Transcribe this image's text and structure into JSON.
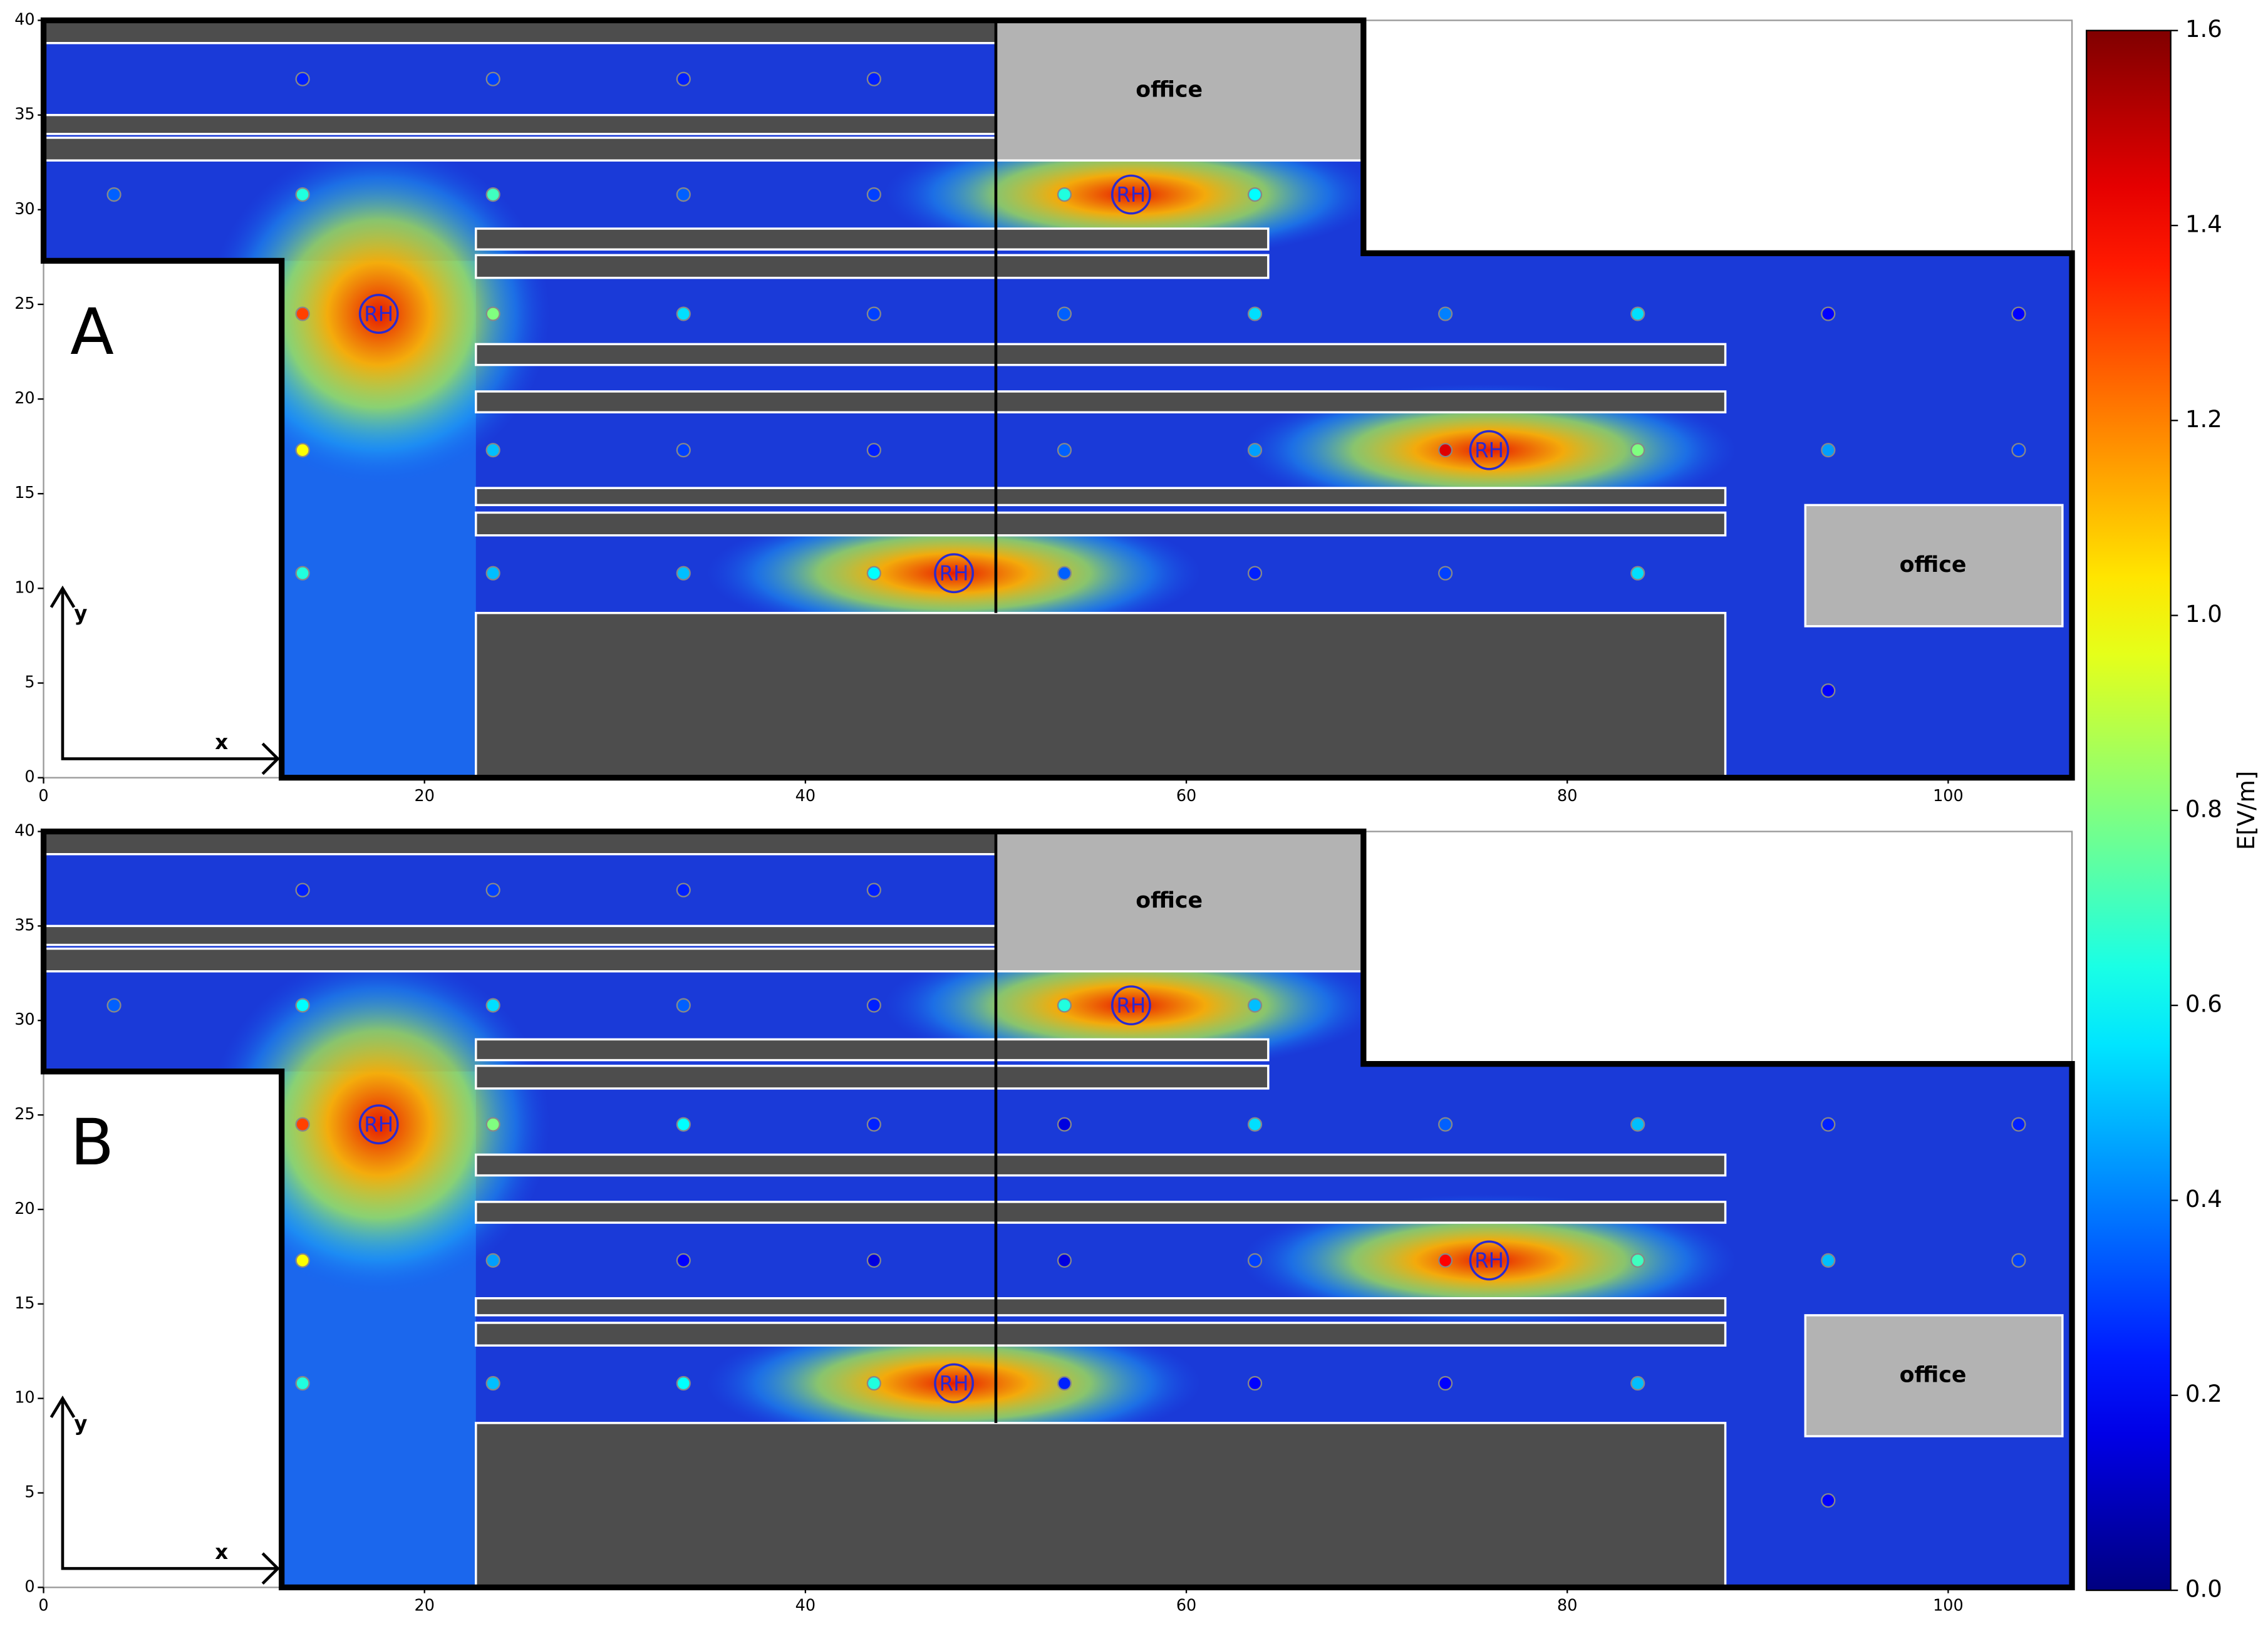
{
  "chart_data": [
    {
      "type": "floorplan-heatmap",
      "label": "A",
      "xlim": [
        0,
        106.5
      ],
      "ylim": [
        0,
        40
      ],
      "xticks": [
        0,
        20,
        40,
        60,
        80,
        100
      ],
      "yticks": [
        0,
        5,
        10,
        15,
        20,
        25,
        30,
        35,
        40
      ],
      "room_labels": [
        "office",
        "office"
      ],
      "axis_arrow_labels": [
        "x",
        "y"
      ],
      "sources": {
        "label": "RH",
        "x": [
          17.6,
          57.1,
          47.8,
          75.9
        ],
        "y": [
          24.5,
          30.8,
          10.8,
          17.3
        ]
      },
      "points": {
        "x": [
          13.6,
          23.6,
          33.6,
          43.6,
          3.7,
          13.6,
          23.6,
          33.6,
          43.6,
          53.6,
          63.6,
          13.6,
          23.6,
          33.6,
          43.6,
          53.6,
          63.6,
          73.6,
          83.7,
          93.7,
          103.7,
          13.6,
          23.6,
          33.6,
          43.6,
          53.6,
          63.6,
          73.6,
          83.7,
          93.7,
          103.7,
          13.6,
          23.6,
          33.6,
          43.6,
          53.6,
          63.6,
          73.6,
          83.7,
          93.7
        ],
        "y": [
          36.9,
          36.9,
          36.9,
          36.9,
          30.8,
          30.8,
          30.8,
          30.8,
          30.8,
          30.8,
          30.8,
          24.5,
          24.5,
          24.5,
          24.5,
          24.5,
          24.5,
          24.5,
          24.5,
          24.5,
          24.5,
          17.3,
          17.3,
          17.3,
          17.3,
          17.3,
          17.3,
          17.3,
          17.3,
          17.3,
          17.3,
          10.8,
          10.8,
          10.8,
          10.8,
          10.8,
          10.8,
          10.8,
          10.8,
          4.6
        ],
        "values": [
          0.25,
          0.3,
          0.25,
          0.25,
          0.35,
          0.65,
          0.7,
          0.35,
          0.3,
          0.65,
          0.6,
          1.3,
          0.8,
          0.55,
          0.3,
          0.35,
          0.55,
          0.4,
          0.55,
          0.2,
          0.2,
          1.0,
          0.5,
          0.3,
          0.25,
          0.35,
          0.45,
          1.45,
          0.8,
          0.45,
          0.3,
          0.65,
          0.5,
          0.5,
          0.6,
          0.35,
          0.25,
          0.3,
          0.55,
          0.2
        ]
      }
    },
    {
      "type": "floorplan-heatmap",
      "label": "B",
      "xlim": [
        0,
        106.5
      ],
      "ylim": [
        0,
        40
      ],
      "xticks": [
        0,
        20,
        40,
        60,
        80,
        100
      ],
      "yticks": [
        0,
        5,
        10,
        15,
        20,
        25,
        30,
        35,
        40
      ],
      "room_labels": [
        "office",
        "office"
      ],
      "axis_arrow_labels": [
        "x",
        "y"
      ],
      "sources": {
        "label": "RH",
        "x": [
          17.6,
          57.1,
          47.8,
          75.9
        ],
        "y": [
          24.5,
          30.8,
          10.8,
          17.3
        ]
      },
      "points": {
        "x": [
          13.6,
          23.6,
          33.6,
          43.6,
          3.7,
          13.6,
          23.6,
          33.6,
          43.6,
          53.6,
          63.6,
          13.6,
          23.6,
          33.6,
          43.6,
          53.6,
          63.6,
          73.6,
          83.7,
          93.7,
          103.7,
          13.6,
          23.6,
          33.6,
          43.6,
          53.6,
          63.6,
          73.6,
          83.7,
          93.7,
          103.7,
          13.6,
          23.6,
          33.6,
          43.6,
          53.6,
          63.6,
          73.6,
          83.7,
          93.7
        ],
        "y": [
          36.9,
          36.9,
          36.9,
          36.9,
          30.8,
          30.8,
          30.8,
          30.8,
          30.8,
          30.8,
          30.8,
          24.5,
          24.5,
          24.5,
          24.5,
          24.5,
          24.5,
          24.5,
          24.5,
          24.5,
          24.5,
          17.3,
          17.3,
          17.3,
          17.3,
          17.3,
          17.3,
          17.3,
          17.3,
          17.3,
          17.3,
          10.8,
          10.8,
          10.8,
          10.8,
          10.8,
          10.8,
          10.8,
          10.8,
          4.6
        ],
        "values": [
          0.25,
          0.3,
          0.25,
          0.25,
          0.35,
          0.6,
          0.55,
          0.35,
          0.25,
          0.65,
          0.5,
          1.3,
          0.8,
          0.6,
          0.25,
          0.15,
          0.55,
          0.35,
          0.5,
          0.25,
          0.25,
          1.0,
          0.45,
          0.2,
          0.15,
          0.15,
          0.3,
          1.4,
          0.7,
          0.5,
          0.3,
          0.65,
          0.5,
          0.6,
          0.65,
          0.25,
          0.2,
          0.2,
          0.5,
          0.2
        ]
      }
    },
    {
      "type": "colorbar",
      "label": "E[V/m]",
      "colormap": "jet",
      "lim": [
        0,
        1.6
      ],
      "ticks": [
        {
          "value": 0,
          "label": "0.0"
        },
        {
          "value": 0.2,
          "label": "0.2"
        },
        {
          "value": 0.4,
          "label": "0.4"
        },
        {
          "value": 0.6,
          "label": "0.6"
        },
        {
          "value": 0.8,
          "label": "0.8"
        },
        {
          "value": 1.0,
          "label": "1.0"
        },
        {
          "value": 1.2,
          "label": "1.2"
        },
        {
          "value": 1.4,
          "label": "1.4"
        },
        {
          "value": 1.6,
          "label": "1.6"
        }
      ]
    }
  ]
}
